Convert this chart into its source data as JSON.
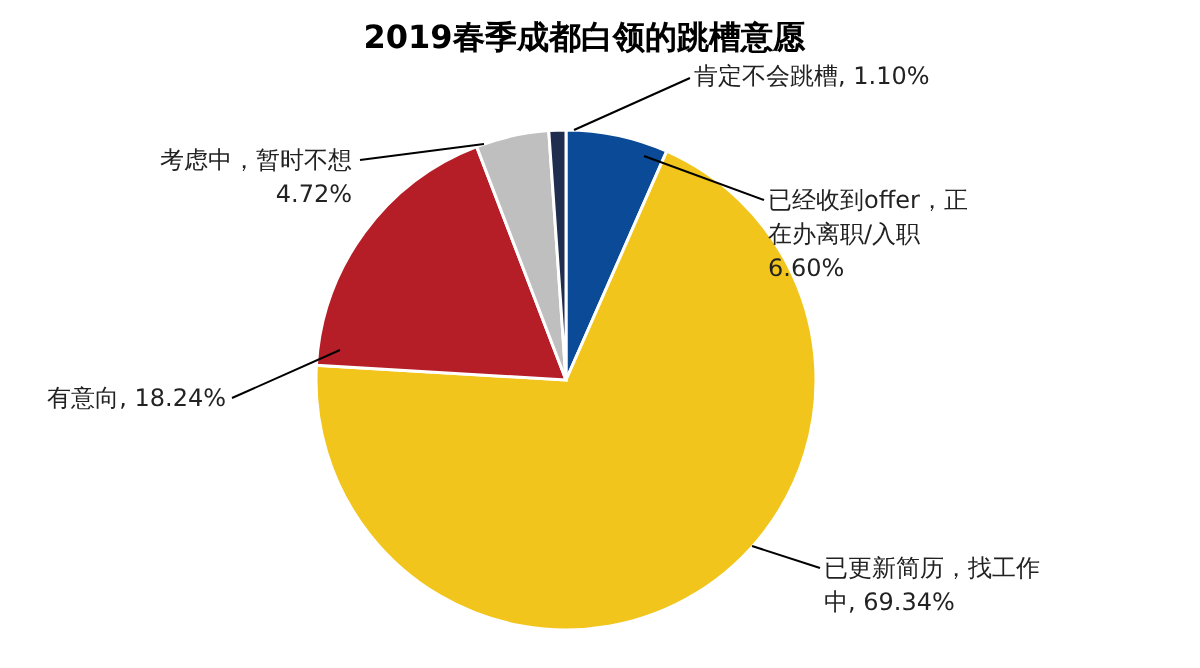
{
  "chart_data": {
    "type": "pie",
    "title": "2019春季成都白领的跳槽意愿",
    "categories": [
      "已经收到offer，正在办离职/入职",
      "已更新简历，找工作中",
      "有意向",
      "考虑中，暂时不想",
      "肯定不会跳槽"
    ],
    "values": [
      6.6,
      69.34,
      18.24,
      4.72,
      1.1
    ],
    "value_labels": [
      "6.60%",
      "69.34%",
      "18.24%",
      "4.72%",
      "1.10%"
    ],
    "colors": [
      "#0b4a97",
      "#f2c51c",
      "#b61e27",
      "#bfbfbf",
      "#1f2d4f"
    ]
  }
}
